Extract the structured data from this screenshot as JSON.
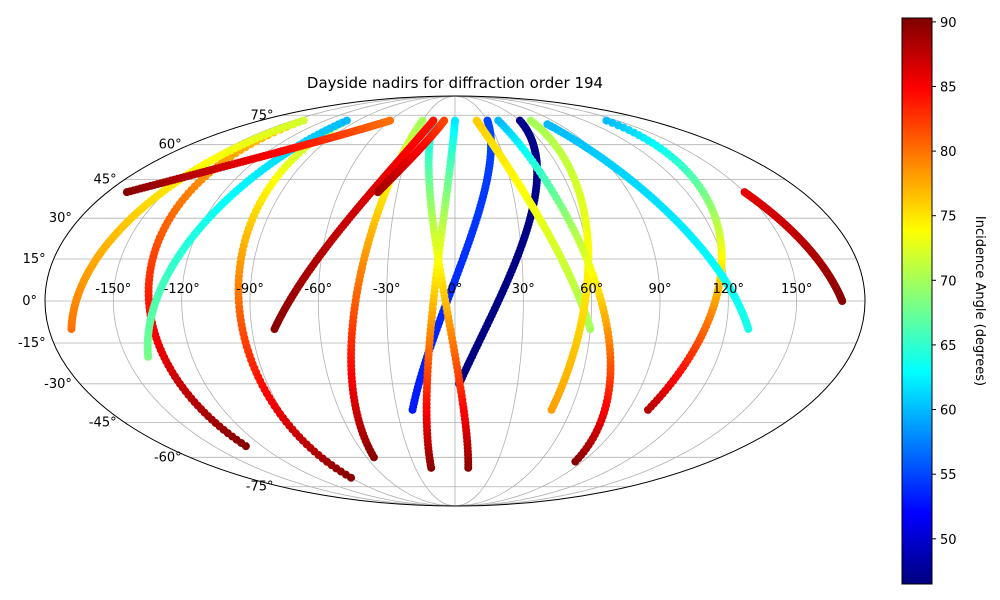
{
  "chart_data": {
    "type": "scatter",
    "projection": "mollweide",
    "title": "Dayside nadirs for diffraction order 194",
    "xlabel": "",
    "ylabel": "",
    "grid": true,
    "lon_tick_labels": [
      "-150°",
      "-120°",
      "-90°",
      "-60°",
      "-30°",
      "0°",
      "30°",
      "60°",
      "90°",
      "120°",
      "150°"
    ],
    "lon_tick_values": [
      -150,
      -120,
      -90,
      -60,
      -30,
      0,
      30,
      60,
      90,
      120,
      150
    ],
    "lat_tick_labels": [
      "-75°",
      "-60°",
      "-45°",
      "-30°",
      "-15°",
      "0°",
      "15°",
      "30°",
      "45°",
      "60°",
      "75°"
    ],
    "lat_tick_values": [
      -75,
      -60,
      -45,
      -30,
      -15,
      0,
      15,
      30,
      45,
      60,
      75
    ],
    "colorbar": {
      "label": "Incidence Angle (degrees)",
      "colormap": "jet",
      "range": [
        46.5,
        90.3
      ],
      "ticks": [
        50,
        55,
        60,
        65,
        70,
        75,
        80,
        85,
        90
      ],
      "tick_labels": [
        "50",
        "55",
        "60",
        "65",
        "70",
        "75",
        "80",
        "85",
        "90"
      ]
    },
    "series": [
      {
        "lon_start": 2,
        "lat_start": -30,
        "lon_end": 60,
        "lat_end": 72,
        "inc_start": 46.5,
        "inc_end": 47
      },
      {
        "lon_start": -22,
        "lat_start": -40,
        "lon_end": 30,
        "lat_end": 72,
        "inc_start": 53,
        "inc_end": 55
      },
      {
        "lon_start": -18,
        "lat_start": -65,
        "lon_end": 0,
        "lat_end": 72,
        "inc_start": 90,
        "inc_end": 62
      },
      {
        "lon_start": -55,
        "lat_start": -60,
        "lon_end": -30,
        "lat_end": 72,
        "inc_start": 90,
        "inc_end": 70
      },
      {
        "lon_start": 10,
        "lat_start": -65,
        "lon_end": -20,
        "lat_end": 72,
        "inc_start": 90,
        "inc_end": 62
      },
      {
        "lon_start": -90,
        "lat_start": -70,
        "lon_end": -100,
        "lat_end": 72,
        "inc_start": 90,
        "inc_end": 70
      },
      {
        "lon_start": -130,
        "lat_start": -55,
        "lon_end": -140,
        "lat_end": 70,
        "inc_start": 90,
        "inc_end": 76
      },
      {
        "lon_start": -170,
        "lat_start": -10,
        "lon_end": -140,
        "lat_end": 72,
        "inc_start": 80,
        "inc_end": 72
      },
      {
        "lon_start": -140,
        "lat_start": -20,
        "lon_end": -100,
        "lat_end": 72,
        "inc_start": 68,
        "inc_end": 60
      },
      {
        "lon_start": 100,
        "lat_start": -40,
        "lon_end": 140,
        "lat_end": 72,
        "inc_start": 88,
        "inc_end": 60
      },
      {
        "lon_start": 130,
        "lat_start": -10,
        "lon_end": 80,
        "lat_end": 70,
        "inc_start": 64,
        "inc_end": 60
      },
      {
        "lon_start": 60,
        "lat_start": -10,
        "lon_end": 20,
        "lat_end": 72,
        "inc_start": 70,
        "inc_end": 76
      },
      {
        "lon_start": 50,
        "lat_start": -40,
        "lon_end": 70,
        "lat_end": 72,
        "inc_start": 78,
        "inc_end": 70
      },
      {
        "lon_start": 85,
        "lat_start": -62,
        "lon_end": 40,
        "lat_end": 72,
        "inc_start": 90,
        "inc_end": 60
      },
      {
        "lon_start": 170,
        "lat_start": 0,
        "lon_end": 150,
        "lat_end": 40,
        "inc_start": 90,
        "inc_end": 86
      },
      {
        "lon_start": -170,
        "lat_start": 40,
        "lon_end": -60,
        "lat_end": 72,
        "inc_start": 90,
        "inc_end": 80
      },
      {
        "lon_start": -80,
        "lat_start": -10,
        "lon_end": -20,
        "lat_end": 72,
        "inc_start": 90,
        "inc_end": 84
      },
      {
        "lon_start": -40,
        "lat_start": 40,
        "lon_end": -10,
        "lat_end": 72,
        "inc_start": 89,
        "inc_end": 82
      }
    ]
  }
}
